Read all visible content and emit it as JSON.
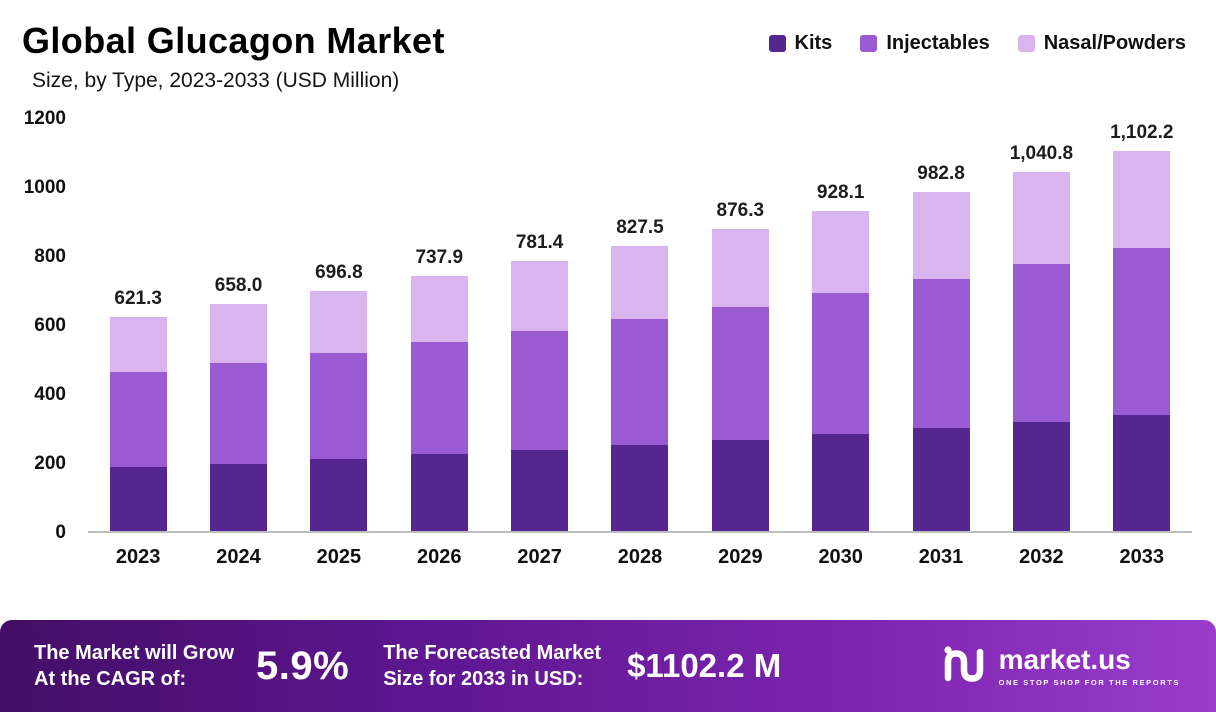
{
  "header": {
    "title": "Global Glucagon Market",
    "subtitle": "Size, by Type, 2023-2033 (USD Million)"
  },
  "legend_items": [
    {
      "label": "Kits",
      "color": "#55268f"
    },
    {
      "label": "Injectables",
      "color": "#9a5ad2"
    },
    {
      "label": "Nasal/Powders",
      "color": "#d9b4ee"
    }
  ],
  "chart_data": {
    "type": "bar",
    "stacked": true,
    "title": "Global Glucagon Market Size, by Type, 2023-2033 (USD Million)",
    "categories": [
      "2023",
      "2024",
      "2025",
      "2026",
      "2027",
      "2028",
      "2029",
      "2030",
      "2031",
      "2032",
      "2033"
    ],
    "series": [
      {
        "name": "Kits",
        "color": "#55268f",
        "values": [
          185.2,
          195.0,
          209.5,
          222.0,
          235.5,
          249.8,
          265.0,
          281.5,
          298.9,
          317.3,
          336.8
        ]
      },
      {
        "name": "Injectables",
        "color": "#9a5ad2",
        "values": [
          274.8,
          292.0,
          307.3,
          325.9,
          344.9,
          364.7,
          385.3,
          407.6,
          430.9,
          457.5,
          483.4
        ]
      },
      {
        "name": "Nasal/Powders",
        "color": "#d9b4ee",
        "values": [
          161.3,
          171.0,
          180.0,
          190.0,
          201.0,
          213.0,
          226.0,
          239.0,
          253.0,
          266.0,
          282.0
        ]
      }
    ],
    "totals": [
      621.3,
      658.0,
      696.8,
      737.9,
      781.4,
      827.5,
      876.3,
      928.1,
      982.8,
      1040.8,
      1102.2
    ],
    "total_labels": [
      "621.3",
      "658.0",
      "696.8",
      "737.9",
      "781.4",
      "827.5",
      "876.3",
      "928.1",
      "982.8",
      "1,040.8",
      "1,102.2"
    ],
    "xlabel": "",
    "ylabel": "",
    "ylim": [
      0,
      1200
    ],
    "yticks": [
      0,
      200,
      400,
      600,
      800,
      1000,
      1200
    ],
    "grid": false,
    "legend_position": "top-right"
  },
  "footer": {
    "cagr_label_line1": "The Market will Grow",
    "cagr_label_line2": "At the CAGR of:",
    "cagr_value": "5.9%",
    "forecast_label_line1": "The Forecasted Market",
    "forecast_label_line2": "Size for 2033 in USD:",
    "forecast_value": "$1102.2 M",
    "brand": "market.us",
    "brand_tagline": "ONE STOP SHOP FOR THE REPORTS"
  }
}
